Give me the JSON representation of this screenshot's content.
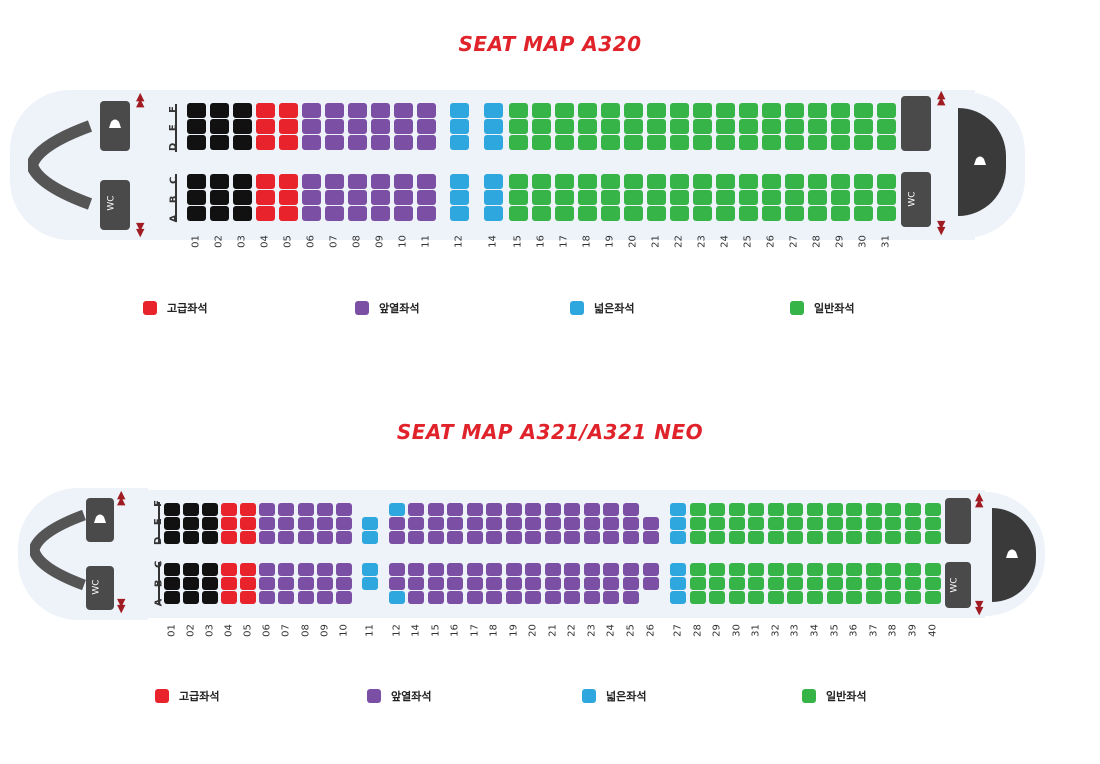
{
  "maps": [
    {
      "title": "SEAT MAP  A320",
      "row_numbers": [
        "01",
        "02",
        "03",
        "04",
        "05",
        "06",
        "07",
        "08",
        "09",
        "10",
        "11",
        "12",
        "14",
        "15",
        "16",
        "17",
        "18",
        "19",
        "20",
        "21",
        "22",
        "23",
        "24",
        "25",
        "26",
        "27",
        "28",
        "29",
        "30",
        "31"
      ],
      "seat_letters_upper": "D E F",
      "seat_letters_lower": "A B C",
      "wc_label": "WC",
      "legend": [
        "고급좌석",
        "앞열좌석",
        "넓은좌석",
        "일반좌석"
      ]
    },
    {
      "title": "SEAT MAP A321/A321 NEO",
      "row_numbers": [
        "01",
        "02",
        "03",
        "04",
        "05",
        "06",
        "07",
        "08",
        "09",
        "10",
        "11",
        "12",
        "14",
        "15",
        "16",
        "17",
        "18",
        "19",
        "20",
        "21",
        "22",
        "23",
        "24",
        "25",
        "26",
        "27",
        "28",
        "29",
        "30",
        "31",
        "32",
        "33",
        "34",
        "35",
        "36",
        "37",
        "38",
        "39",
        "40"
      ],
      "seat_letters_upper": "D E F",
      "seat_letters_lower": "A B C",
      "wc_label": "WC",
      "legend": [
        "고급좌석",
        "앞열좌석",
        "넓은좌석",
        "일반좌석"
      ]
    }
  ],
  "colors": {
    "premium": "#e8232b",
    "front_row": "#7b4fa3",
    "extra_legroom": "#2da7dd",
    "standard": "#37b447",
    "blocked": "#111111",
    "title": "#e0232b"
  },
  "icons": [
    "galley-icon",
    "wc-icon",
    "exit-arrow-icon",
    "cockpit-nose"
  ]
}
